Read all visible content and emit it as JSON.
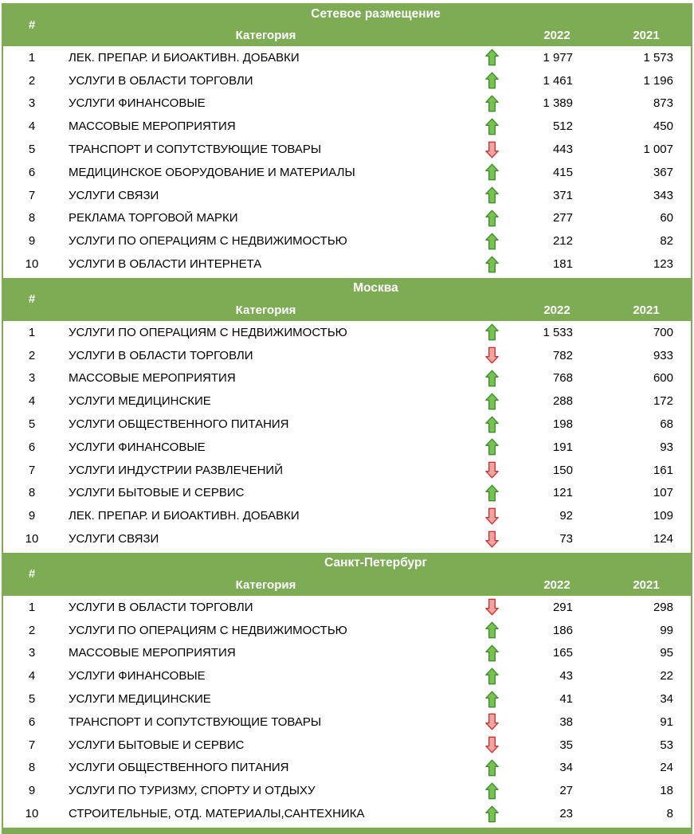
{
  "colors": {
    "header_bg": "#7EAC55",
    "header_text": "#FFFFFF",
    "row_text": "#000000",
    "row_bg": "#FFFFFF",
    "up_fill": "#77C34F",
    "up_stroke": "#3F8F2F",
    "down_fill": "#F2A5A0",
    "down_stroke": "#CC3333"
  },
  "columns": {
    "rank": "#",
    "category": "Категория",
    "y2022": "2022",
    "y2021": "2021"
  },
  "chart_data": [
    {
      "type": "table",
      "title": "Сетевое размещение",
      "columns": [
        "#",
        "Категория",
        "тренд",
        "2022",
        "2021"
      ],
      "rows": [
        {
          "rank": "1",
          "category": "ЛЕК. ПРЕПАР. И БИОАКТИВН. ДОБАВКИ",
          "trend": "up",
          "y2022": "1 977",
          "y2021": "1 573"
        },
        {
          "rank": "2",
          "category": "УСЛУГИ В ОБЛАСТИ ТОРГОВЛИ",
          "trend": "up",
          "y2022": "1 461",
          "y2021": "1 196"
        },
        {
          "rank": "3",
          "category": "УСЛУГИ ФИНАНСОВЫЕ",
          "trend": "up",
          "y2022": "1 389",
          "y2021": "873"
        },
        {
          "rank": "4",
          "category": "МАССОВЫЕ МЕРОПРИЯТИЯ",
          "trend": "up",
          "y2022": "512",
          "y2021": "450"
        },
        {
          "rank": "5",
          "category": "ТРАНСПОРТ И СОПУТСТВУЮЩИЕ ТОВАРЫ",
          "trend": "down",
          "y2022": "443",
          "y2021": "1 007"
        },
        {
          "rank": "6",
          "category": "МЕДИЦИНСКОЕ ОБОРУДОВАНИЕ И МАТЕРИАЛЫ",
          "trend": "up",
          "y2022": "415",
          "y2021": "367"
        },
        {
          "rank": "7",
          "category": "УСЛУГИ СВЯЗИ",
          "trend": "up",
          "y2022": "371",
          "y2021": "343"
        },
        {
          "rank": "8",
          "category": "РЕКЛАМА ТОРГОВОЙ МАРКИ",
          "trend": "up",
          "y2022": "277",
          "y2021": "60"
        },
        {
          "rank": "9",
          "category": "УСЛУГИ ПО ОПЕРАЦИЯМ С НЕДВИЖИМОСТЬЮ",
          "trend": "up",
          "y2022": "212",
          "y2021": "82"
        },
        {
          "rank": "10",
          "category": "УСЛУГИ В ОБЛАСТИ ИНТЕРНЕТА",
          "trend": "up",
          "y2022": "181",
          "y2021": "123"
        }
      ]
    },
    {
      "type": "table",
      "title": "Москва",
      "columns": [
        "#",
        "Категория",
        "тренд",
        "2022",
        "2021"
      ],
      "rows": [
        {
          "rank": "1",
          "category": "УСЛУГИ ПО ОПЕРАЦИЯМ С НЕДВИЖИМОСТЬЮ",
          "trend": "up",
          "y2022": "1 533",
          "y2021": "700"
        },
        {
          "rank": "2",
          "category": "УСЛУГИ В ОБЛАСТИ ТОРГОВЛИ",
          "trend": "down",
          "y2022": "782",
          "y2021": "933"
        },
        {
          "rank": "3",
          "category": "МАССОВЫЕ МЕРОПРИЯТИЯ",
          "trend": "up",
          "y2022": "768",
          "y2021": "600"
        },
        {
          "rank": "4",
          "category": "УСЛУГИ МЕДИЦИНСКИЕ",
          "trend": "up",
          "y2022": "288",
          "y2021": "172"
        },
        {
          "rank": "5",
          "category": "УСЛУГИ ОБЩЕСТВЕННОГО ПИТАНИЯ",
          "trend": "up",
          "y2022": "198",
          "y2021": "68"
        },
        {
          "rank": "6",
          "category": "УСЛУГИ ФИНАНСОВЫЕ",
          "trend": "up",
          "y2022": "191",
          "y2021": "93"
        },
        {
          "rank": "7",
          "category": "УСЛУГИ ИНДУСТРИИ РАЗВЛЕЧЕНИЙ",
          "trend": "down",
          "y2022": "150",
          "y2021": "161"
        },
        {
          "rank": "8",
          "category": "УСЛУГИ БЫТОВЫЕ И СЕРВИС",
          "trend": "up",
          "y2022": "121",
          "y2021": "107"
        },
        {
          "rank": "9",
          "category": "ЛЕК. ПРЕПАР. И БИОАКТИВН. ДОБАВКИ",
          "trend": "down",
          "y2022": "92",
          "y2021": "109"
        },
        {
          "rank": "10",
          "category": "УСЛУГИ СВЯЗИ",
          "trend": "down",
          "y2022": "73",
          "y2021": "124"
        }
      ]
    },
    {
      "type": "table",
      "title": "Санкт-Петербург",
      "columns": [
        "#",
        "Категория",
        "тренд",
        "2022",
        "2021"
      ],
      "rows": [
        {
          "rank": "1",
          "category": "УСЛУГИ В ОБЛАСТИ ТОРГОВЛИ",
          "trend": "down",
          "y2022": "291",
          "y2021": "298"
        },
        {
          "rank": "2",
          "category": "УСЛУГИ ПО ОПЕРАЦИЯМ С НЕДВИЖИМОСТЬЮ",
          "trend": "up",
          "y2022": "186",
          "y2021": "99"
        },
        {
          "rank": "3",
          "category": "МАССОВЫЕ МЕРОПРИЯТИЯ",
          "trend": "up",
          "y2022": "165",
          "y2021": "95"
        },
        {
          "rank": "4",
          "category": "УСЛУГИ ФИНАНСОВЫЕ",
          "trend": "up",
          "y2022": "43",
          "y2021": "22"
        },
        {
          "rank": "5",
          "category": "УСЛУГИ МЕДИЦИНСКИЕ",
          "trend": "up",
          "y2022": "41",
          "y2021": "34"
        },
        {
          "rank": "6",
          "category": "ТРАНСПОРТ И СОПУТСТВУЮЩИЕ ТОВАРЫ",
          "trend": "down",
          "y2022": "38",
          "y2021": "91"
        },
        {
          "rank": "7",
          "category": "УСЛУГИ БЫТОВЫЕ И СЕРВИС",
          "trend": "down",
          "y2022": "35",
          "y2021": "53"
        },
        {
          "rank": "8",
          "category": "УСЛУГИ ОБЩЕСТВЕННОГО ПИТАНИЯ",
          "trend": "up",
          "y2022": "34",
          "y2021": "24"
        },
        {
          "rank": "9",
          "category": "УСЛУГИ ПО ТУРИЗМУ, СПОРТУ И ОТДЫХУ",
          "trend": "up",
          "y2022": "27",
          "y2021": "18"
        },
        {
          "rank": "10",
          "category": "СТРОИТЕЛЬНЫЕ, ОТД. МАТЕРИАЛЫ,САНТЕХНИКА",
          "trend": "up",
          "y2022": "23",
          "y2021": "8"
        }
      ]
    }
  ]
}
